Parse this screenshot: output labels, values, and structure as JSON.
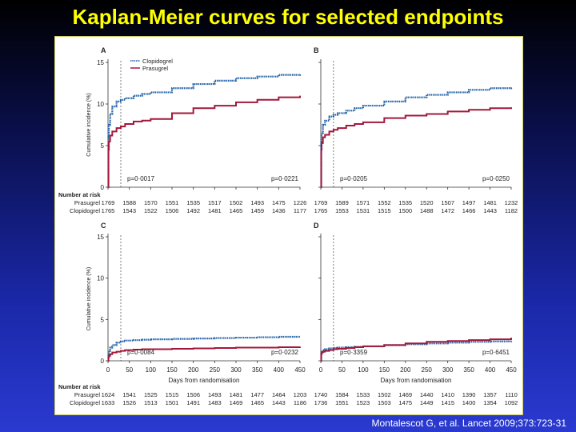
{
  "title": "Kaplan-Meier curves for selected endpoints",
  "citation": "Montalescot G, et al. Lancet 2009;373:723-31",
  "colors": {
    "clopidogrel": "#1f5fa6",
    "prasugrel": "#a3183a"
  },
  "common": {
    "ylabel": "Cumulative incidence (%)",
    "xlabel": "Days from randomisation",
    "number_at_risk_label": "Number at risk",
    "risk_row_labels": [
      "Prasugrel",
      "Clopidogrel"
    ]
  },
  "chart_data": [
    {
      "panel": "A",
      "type": "line",
      "ylim": [
        0,
        15
      ],
      "yticks": [
        0,
        5,
        10,
        15
      ],
      "xlim": [
        0,
        450
      ],
      "xticks": [
        0,
        50,
        100,
        150,
        200,
        250,
        300,
        350,
        400,
        450
      ],
      "show_xaxis": false,
      "legend": [
        "Clopidogrel",
        "Prasugrel"
      ],
      "p_left": "p=0·0017",
      "p_right": "p=0·0221",
      "series": [
        {
          "name": "Clopidogrel",
          "x": [
            0,
            1,
            2,
            5,
            10,
            20,
            30,
            40,
            60,
            80,
            100,
            150,
            200,
            250,
            300,
            350,
            400,
            450
          ],
          "y": [
            0,
            6,
            7.5,
            8.8,
            9.7,
            10.3,
            10.5,
            10.7,
            11.0,
            11.2,
            11.4,
            11.9,
            12.4,
            12.8,
            13.1,
            13.3,
            13.5,
            13.6
          ]
        },
        {
          "name": "Prasugrel",
          "x": [
            0,
            1,
            2,
            5,
            10,
            20,
            30,
            40,
            60,
            80,
            100,
            150,
            200,
            250,
            300,
            350,
            400,
            450
          ],
          "y": [
            0,
            4.5,
            5.5,
            6.2,
            6.7,
            7.1,
            7.3,
            7.6,
            7.9,
            8.0,
            8.2,
            8.9,
            9.5,
            9.8,
            10.2,
            10.5,
            10.8,
            11.0
          ]
        }
      ],
      "at_risk": {
        "Prasugrel": [
          "1769",
          "1588",
          "1570",
          "1551",
          "1535",
          "1517",
          "1502",
          "1493",
          "1475",
          "1226"
        ],
        "Clopidogrel": [
          "1765",
          "1543",
          "1522",
          "1506",
          "1492",
          "1481",
          "1465",
          "1459",
          "1436",
          "1177"
        ]
      }
    },
    {
      "panel": "B",
      "type": "line",
      "ylim": [
        0,
        15
      ],
      "xlim": [
        0,
        450
      ],
      "xticks": [
        0,
        50,
        100,
        150,
        200,
        250,
        300,
        350,
        400,
        450
      ],
      "show_xaxis": false,
      "p_left": "p=0·0205",
      "p_right": "p=0·0250",
      "series": [
        {
          "name": "Clopidogrel",
          "x": [
            0,
            1,
            2,
            5,
            10,
            20,
            30,
            40,
            60,
            80,
            100,
            150,
            200,
            250,
            300,
            350,
            400,
            450
          ],
          "y": [
            0,
            5.5,
            6.5,
            7.5,
            8.0,
            8.5,
            8.7,
            8.9,
            9.2,
            9.5,
            9.8,
            10.3,
            10.8,
            11.1,
            11.4,
            11.7,
            11.9,
            12.0
          ]
        },
        {
          "name": "Prasugrel",
          "x": [
            0,
            1,
            2,
            5,
            10,
            20,
            30,
            40,
            60,
            80,
            100,
            150,
            200,
            250,
            300,
            350,
            400,
            450
          ],
          "y": [
            0,
            4.5,
            5.3,
            6.0,
            6.3,
            6.7,
            6.9,
            7.1,
            7.4,
            7.6,
            7.8,
            8.3,
            8.6,
            8.8,
            9.1,
            9.3,
            9.5,
            9.6
          ]
        }
      ],
      "at_risk": {
        "Prasugrel": [
          "1769",
          "1589",
          "1571",
          "1552",
          "1535",
          "1520",
          "1507",
          "1497",
          "1481",
          "1232"
        ],
        "Clopidogrel": [
          "1765",
          "1553",
          "1531",
          "1515",
          "1500",
          "1488",
          "1472",
          "1466",
          "1443",
          "1182"
        ]
      }
    },
    {
      "panel": "C",
      "type": "line",
      "ylim": [
        0,
        15
      ],
      "yticks": [
        0,
        5,
        10,
        15
      ],
      "xlim": [
        0,
        450
      ],
      "xticks": [
        0,
        50,
        100,
        150,
        200,
        250,
        300,
        350,
        400,
        450
      ],
      "show_xaxis": true,
      "p_left": "p=0·0084",
      "p_right": "p=0·0232",
      "series": [
        {
          "name": "Clopidogrel",
          "x": [
            0,
            1,
            2,
            5,
            10,
            20,
            30,
            40,
            60,
            80,
            100,
            150,
            200,
            250,
            300,
            350,
            400,
            450
          ],
          "y": [
            0,
            0.8,
            1.2,
            1.6,
            1.9,
            2.2,
            2.35,
            2.45,
            2.5,
            2.55,
            2.6,
            2.65,
            2.7,
            2.75,
            2.8,
            2.85,
            2.9,
            2.9
          ]
        },
        {
          "name": "Prasugrel",
          "x": [
            0,
            1,
            2,
            5,
            10,
            20,
            30,
            40,
            60,
            80,
            100,
            150,
            200,
            250,
            300,
            350,
            400,
            450
          ],
          "y": [
            0,
            0.4,
            0.6,
            0.8,
            1.0,
            1.1,
            1.2,
            1.3,
            1.35,
            1.4,
            1.4,
            1.45,
            1.5,
            1.55,
            1.6,
            1.6,
            1.65,
            1.7
          ]
        }
      ],
      "at_risk": {
        "Prasugrel": [
          "1624",
          "1541",
          "1525",
          "1515",
          "1506",
          "1493",
          "1481",
          "1477",
          "1464",
          "1203"
        ],
        "Clopidogrel": [
          "1633",
          "1526",
          "1513",
          "1501",
          "1491",
          "1483",
          "1469",
          "1465",
          "1443",
          "1186"
        ]
      }
    },
    {
      "panel": "D",
      "type": "line",
      "ylim": [
        0,
        15
      ],
      "xlim": [
        0,
        450
      ],
      "xticks": [
        0,
        50,
        100,
        150,
        200,
        250,
        300,
        350,
        400,
        450
      ],
      "show_xaxis": true,
      "p_left": "p=0·3359",
      "p_right": "p=0·6451",
      "series": [
        {
          "name": "Clopidogrel",
          "x": [
            0,
            1,
            2,
            5,
            10,
            20,
            30,
            40,
            60,
            80,
            100,
            150,
            200,
            250,
            300,
            350,
            400,
            450
          ],
          "y": [
            0,
            0.9,
            1.1,
            1.3,
            1.4,
            1.5,
            1.55,
            1.6,
            1.65,
            1.7,
            1.75,
            1.9,
            2.0,
            2.1,
            2.2,
            2.3,
            2.35,
            2.4
          ]
        },
        {
          "name": "Prasugrel",
          "x": [
            0,
            1,
            2,
            5,
            10,
            20,
            30,
            40,
            60,
            80,
            100,
            150,
            200,
            250,
            300,
            350,
            400,
            450
          ],
          "y": [
            0,
            0.8,
            1.0,
            1.1,
            1.2,
            1.3,
            1.4,
            1.45,
            1.55,
            1.65,
            1.75,
            1.9,
            2.1,
            2.3,
            2.4,
            2.5,
            2.6,
            2.8
          ]
        }
      ],
      "at_risk": {
        "Prasugrel": [
          "1740",
          "1584",
          "1533",
          "1502",
          "1469",
          "1440",
          "1410",
          "1390",
          "1357",
          "1110"
        ],
        "Clopidogrel": [
          "1736",
          "1551",
          "1523",
          "1503",
          "1475",
          "1449",
          "1415",
          "1400",
          "1354",
          "1092"
        ]
      }
    }
  ]
}
